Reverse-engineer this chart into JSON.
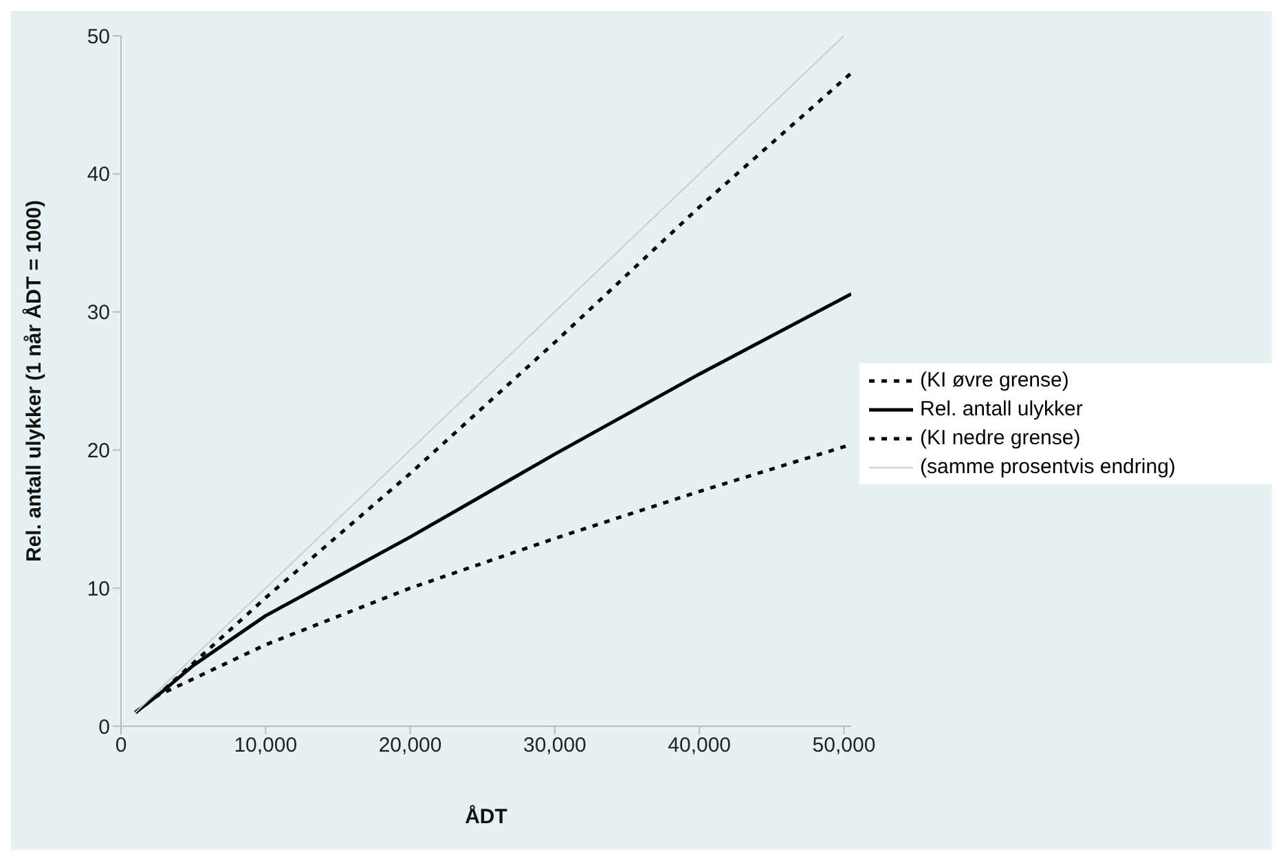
{
  "chart_data": {
    "type": "line",
    "xlabel": "ÅDT",
    "ylabel": "Rel. antall ulykker (1 når ÅDT = 1000)",
    "xlim": [
      0,
      50500
    ],
    "ylim": [
      0,
      50
    ],
    "xticks": [
      0,
      {
        "value": 10000,
        "label": "10,000"
      },
      {
        "value": 20000,
        "label": "20,000"
      },
      {
        "value": 30000,
        "label": "30,000"
      },
      {
        "value": 40000,
        "label": "40,000"
      },
      {
        "value": 50000,
        "label": "50,000"
      }
    ],
    "yticks": [
      0,
      10,
      20,
      30,
      40,
      50
    ],
    "grid": false,
    "legend": "right",
    "marker": "none",
    "series": [
      {
        "name": "(KI øvre grense)",
        "color": "#000000",
        "line_style": "dotted",
        "x": [
          1000,
          2500,
          10000,
          20000,
          30000,
          40000,
          50500
        ],
        "values": [
          1,
          2.2,
          9.3,
          18.3,
          27.8,
          37.6,
          47.3
        ]
      },
      {
        "name": "Rel. antall ulykker",
        "color": "#000000",
        "line_style": "solid",
        "x": [
          1000,
          2500,
          5000,
          10000,
          20000,
          30000,
          40000,
          50500
        ],
        "values": [
          1,
          2.2,
          4.4,
          8,
          13.7,
          19.7,
          25.5,
          31.3
        ]
      },
      {
        "name": "(KI nedre grense)",
        "color": "#000000",
        "line_style": "dotted",
        "x": [
          1000,
          2500,
          10000,
          20000,
          30000,
          40000,
          50500
        ],
        "values": [
          1,
          2.2,
          5.9,
          10,
          13.6,
          17,
          20.4
        ]
      },
      {
        "name": "(samme prosentvis endring)",
        "color": "#cccccc",
        "line_style": "solid",
        "x": [
          1000,
          50000
        ],
        "values": [
          1,
          50
        ]
      }
    ]
  }
}
